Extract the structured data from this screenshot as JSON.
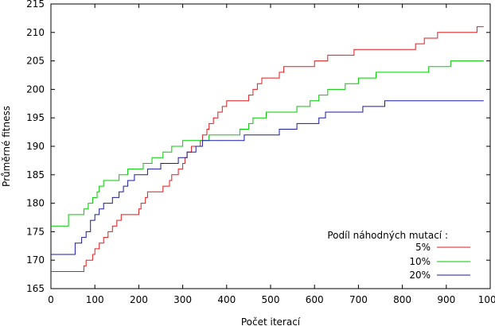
{
  "chart_data": {
    "type": "line",
    "title": "",
    "xlabel": "Počet iterací",
    "ylabel": "Průměrné fitness",
    "xlim": [
      0,
      1000
    ],
    "ylim": [
      165,
      215
    ],
    "xticks": [
      0,
      100,
      200,
      300,
      400,
      500,
      600,
      700,
      800,
      900,
      1000
    ],
    "yticks": [
      165,
      170,
      175,
      180,
      185,
      190,
      195,
      200,
      205,
      210,
      215
    ],
    "grid": false,
    "legend": {
      "title": "Podíl náhodných mutací :",
      "position": "bottom-right"
    },
    "series": [
      {
        "name": "5%",
        "color": "#e31a1c",
        "points": [
          [
            0,
            168
          ],
          [
            70,
            168
          ],
          [
            75,
            169
          ],
          [
            80,
            170
          ],
          [
            95,
            171
          ],
          [
            100,
            172
          ],
          [
            110,
            173
          ],
          [
            120,
            174
          ],
          [
            130,
            175
          ],
          [
            140,
            176
          ],
          [
            150,
            177
          ],
          [
            160,
            178
          ],
          [
            190,
            178
          ],
          [
            200,
            179
          ],
          [
            205,
            180
          ],
          [
            215,
            181
          ],
          [
            220,
            182
          ],
          [
            250,
            182
          ],
          [
            255,
            183
          ],
          [
            270,
            184
          ],
          [
            275,
            185
          ],
          [
            290,
            186
          ],
          [
            300,
            187
          ],
          [
            305,
            188
          ],
          [
            310,
            189
          ],
          [
            320,
            190
          ],
          [
            330,
            190
          ],
          [
            340,
            191
          ],
          [
            345,
            192
          ],
          [
            355,
            193
          ],
          [
            360,
            194
          ],
          [
            370,
            195
          ],
          [
            380,
            196
          ],
          [
            390,
            197
          ],
          [
            400,
            198
          ],
          [
            410,
            198
          ],
          [
            420,
            198
          ],
          [
            440,
            198
          ],
          [
            450,
            199
          ],
          [
            460,
            200
          ],
          [
            470,
            201
          ],
          [
            480,
            202
          ],
          [
            510,
            202
          ],
          [
            520,
            203
          ],
          [
            530,
            204
          ],
          [
            600,
            205
          ],
          [
            620,
            205
          ],
          [
            630,
            206
          ],
          [
            680,
            206
          ],
          [
            690,
            207
          ],
          [
            820,
            207
          ],
          [
            830,
            208
          ],
          [
            850,
            209
          ],
          [
            870,
            209
          ],
          [
            880,
            210
          ],
          [
            960,
            210
          ],
          [
            970,
            211
          ],
          [
            985,
            211
          ]
        ]
      },
      {
        "name": "10%",
        "color": "#00cc00",
        "points": [
          [
            0,
            176
          ],
          [
            30,
            176
          ],
          [
            40,
            178
          ],
          [
            70,
            178
          ],
          [
            75,
            179
          ],
          [
            85,
            180
          ],
          [
            95,
            181
          ],
          [
            105,
            182
          ],
          [
            110,
            183
          ],
          [
            120,
            184
          ],
          [
            150,
            184
          ],
          [
            155,
            185
          ],
          [
            175,
            186
          ],
          [
            200,
            186
          ],
          [
            210,
            187
          ],
          [
            230,
            188
          ],
          [
            255,
            189
          ],
          [
            275,
            190
          ],
          [
            300,
            191
          ],
          [
            340,
            191
          ],
          [
            350,
            191
          ],
          [
            360,
            192
          ],
          [
            420,
            192
          ],
          [
            430,
            193
          ],
          [
            450,
            194
          ],
          [
            460,
            195
          ],
          [
            480,
            195
          ],
          [
            490,
            196
          ],
          [
            520,
            196
          ],
          [
            560,
            197
          ],
          [
            590,
            198
          ],
          [
            610,
            199
          ],
          [
            630,
            200
          ],
          [
            660,
            200
          ],
          [
            670,
            201
          ],
          [
            700,
            202
          ],
          [
            720,
            202
          ],
          [
            740,
            203
          ],
          [
            850,
            203
          ],
          [
            860,
            204
          ],
          [
            900,
            204
          ],
          [
            910,
            205
          ],
          [
            985,
            205
          ]
        ]
      },
      {
        "name": "20%",
        "color": "#1a1aa0",
        "points": [
          [
            0,
            171
          ],
          [
            45,
            171
          ],
          [
            55,
            173
          ],
          [
            70,
            174
          ],
          [
            80,
            175
          ],
          [
            90,
            177
          ],
          [
            100,
            178
          ],
          [
            110,
            179
          ],
          [
            120,
            180
          ],
          [
            140,
            181
          ],
          [
            155,
            182
          ],
          [
            165,
            183
          ],
          [
            175,
            184
          ],
          [
            190,
            185
          ],
          [
            200,
            185
          ],
          [
            220,
            186
          ],
          [
            240,
            186
          ],
          [
            250,
            187
          ],
          [
            280,
            187
          ],
          [
            290,
            188
          ],
          [
            300,
            188
          ],
          [
            310,
            189
          ],
          [
            320,
            189
          ],
          [
            330,
            190
          ],
          [
            345,
            191
          ],
          [
            420,
            191
          ],
          [
            440,
            192
          ],
          [
            500,
            192
          ],
          [
            520,
            193
          ],
          [
            550,
            193
          ],
          [
            560,
            194
          ],
          [
            600,
            194
          ],
          [
            610,
            195
          ],
          [
            625,
            196
          ],
          [
            700,
            196
          ],
          [
            710,
            197
          ],
          [
            740,
            197
          ],
          [
            760,
            198
          ],
          [
            985,
            198
          ]
        ]
      }
    ]
  }
}
